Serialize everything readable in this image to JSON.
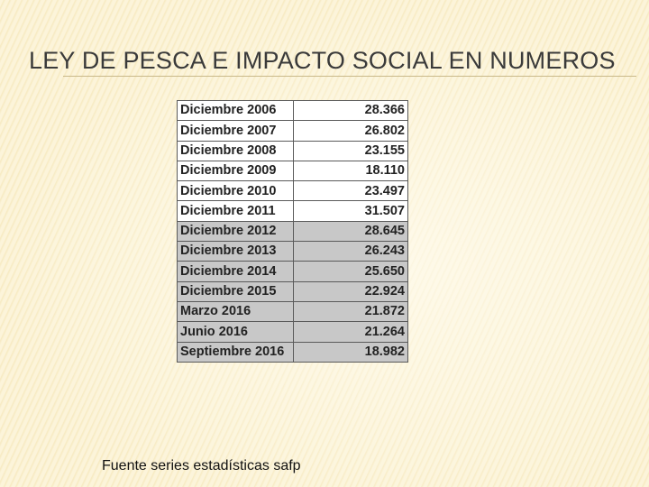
{
  "header": {
    "title": "LEY DE PESCA E IMPACTO SOCIAL EN NUMEROS"
  },
  "table": {
    "rows": [
      [
        "Diciembre 2006",
        "28.366"
      ],
      [
        "Diciembre 2007",
        "26.802"
      ],
      [
        "Diciembre 2008",
        "23.155"
      ],
      [
        "Diciembre 2009",
        "18.110"
      ],
      [
        "Diciembre 2010",
        "23.497"
      ],
      [
        "Diciembre 2011",
        "31.507"
      ],
      [
        "Diciembre 2012",
        "28.645"
      ],
      [
        "Diciembre 2013",
        "26.243"
      ],
      [
        "Diciembre 2014",
        "25.650"
      ],
      [
        "Diciembre 2015",
        "22.924"
      ],
      [
        "Marzo 2016",
        "21.872"
      ],
      [
        "Junio 2016",
        "21.264"
      ],
      [
        "Septiembre 2016",
        "18.982"
      ]
    ]
  },
  "footer": {
    "source": "Fuente series estadísticas  safp"
  }
}
